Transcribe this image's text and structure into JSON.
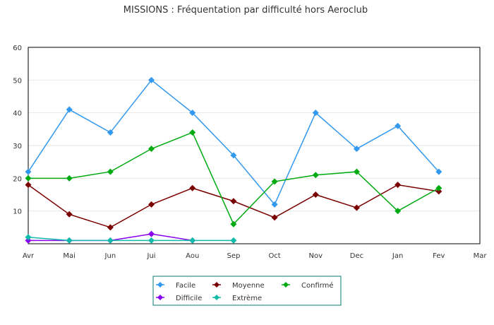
{
  "chart_data": {
    "type": "line",
    "title": "MISSIONS : Fréquentation par difficulté hors Aeroclub",
    "categories": [
      "Avr",
      "Mai",
      "Jun",
      "Jui",
      "Aou",
      "Sep",
      "Oct",
      "Nov",
      "Dec",
      "Jan",
      "Fev",
      "Mar"
    ],
    "ylim": [
      0,
      60
    ],
    "yticks": [
      10,
      20,
      30,
      40,
      50,
      60
    ],
    "grid": true,
    "legend_position": "bottom-center",
    "series": [
      {
        "name": "Facile",
        "color": "#3399ee",
        "values": [
          22,
          41,
          34,
          50,
          40,
          27,
          12,
          40,
          29,
          36,
          22,
          null
        ]
      },
      {
        "name": "Moyenne",
        "color": "#7a0000",
        "values": [
          18,
          9,
          5,
          12,
          17,
          13,
          8,
          15,
          11,
          18,
          16,
          null
        ]
      },
      {
        "name": "Confirmé",
        "color": "#00aa11",
        "values": [
          20,
          20,
          22,
          29,
          34,
          6,
          19,
          21,
          22,
          10,
          17,
          null
        ]
      },
      {
        "name": "Difficile",
        "color": "#8800ee",
        "values": [
          1,
          1,
          1,
          3,
          1,
          null,
          null,
          null,
          null,
          null,
          null,
          null
        ]
      },
      {
        "name": "Extrème",
        "color": "#11bbaa",
        "values": [
          2,
          1,
          1,
          1,
          1,
          1,
          null,
          null,
          null,
          null,
          null,
          null
        ]
      }
    ]
  }
}
